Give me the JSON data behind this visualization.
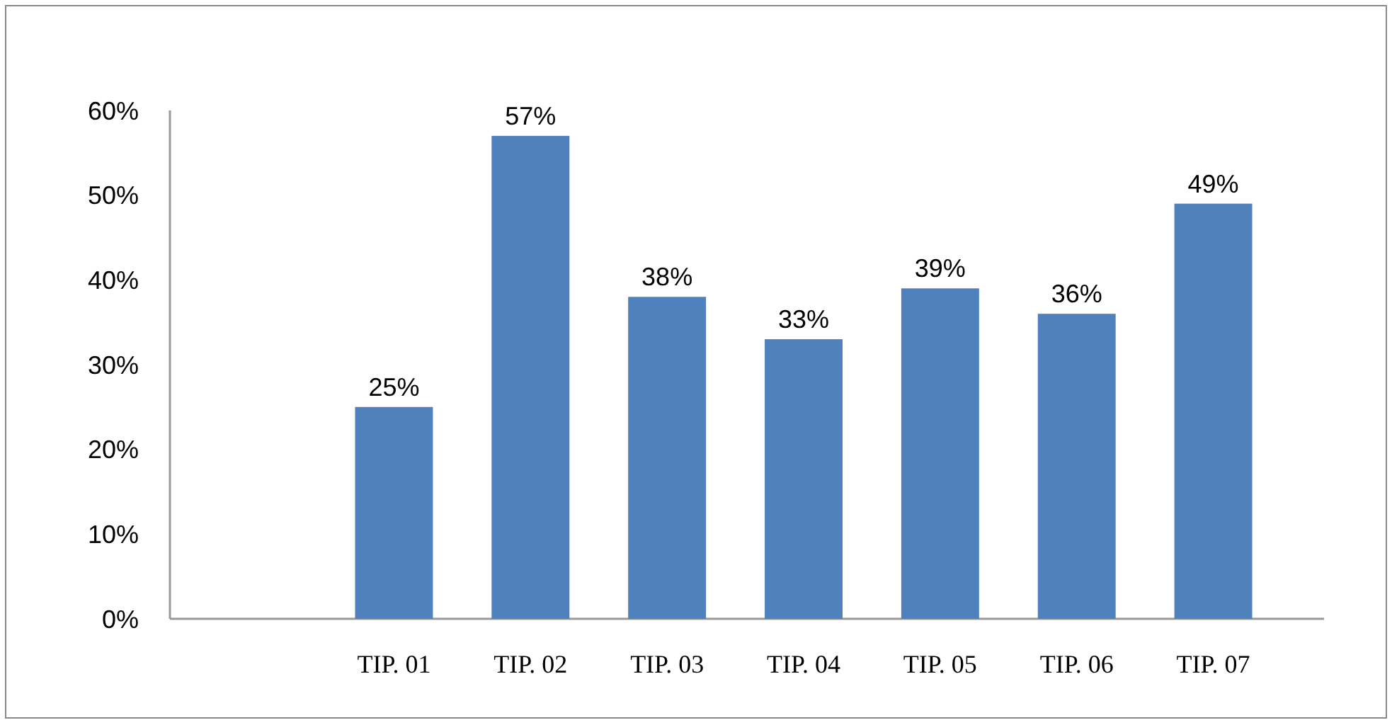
{
  "chart_data": {
    "type": "bar",
    "categories": [
      "TIP. 01",
      "TIP. 02",
      "TIP. 03",
      "TIP. 04",
      "TIP. 05",
      "TIP. 06",
      "TIP. 07"
    ],
    "values": [
      25,
      57,
      38,
      33,
      39,
      36,
      49
    ],
    "value_labels": [
      "25%",
      "57%",
      "38%",
      "33%",
      "39%",
      "36%",
      "49%"
    ],
    "color": "#4f81bd",
    "ylim": [
      0,
      60
    ],
    "yticks": [
      {
        "value": 0,
        "label": "0%"
      },
      {
        "value": 10,
        "label": "10%"
      },
      {
        "value": 20,
        "label": "20%"
      },
      {
        "value": 30,
        "label": "30%"
      },
      {
        "value": 40,
        "label": "40%"
      },
      {
        "value": 50,
        "label": "50%"
      },
      {
        "value": 60,
        "label": "60%"
      }
    ],
    "grid": false
  }
}
